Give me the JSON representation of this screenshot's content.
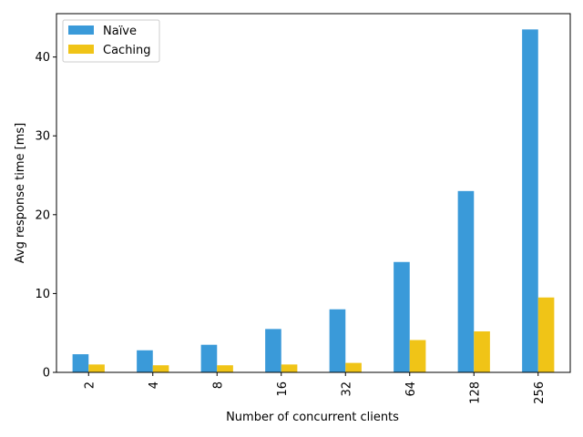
{
  "chart_data": {
    "type": "bar",
    "title": "",
    "xlabel": "Number of concurrent clients",
    "ylabel": "Avg response time [ms]",
    "categories": [
      "2",
      "4",
      "8",
      "16",
      "32",
      "64",
      "128",
      "256"
    ],
    "series": [
      {
        "name": "Naïve",
        "color": "#3a9ad9",
        "values": [
          2.3,
          2.8,
          3.5,
          5.5,
          8.0,
          14.0,
          23.0,
          43.5
        ]
      },
      {
        "name": "Caching",
        "color": "#f0c417",
        "values": [
          1.0,
          0.9,
          0.9,
          1.0,
          1.2,
          4.1,
          5.2,
          9.5
        ]
      }
    ],
    "ylim": [
      0,
      45.5
    ],
    "yticks": [
      0,
      10,
      20,
      30,
      40
    ],
    "grid": false,
    "legend_position": "top-left"
  }
}
